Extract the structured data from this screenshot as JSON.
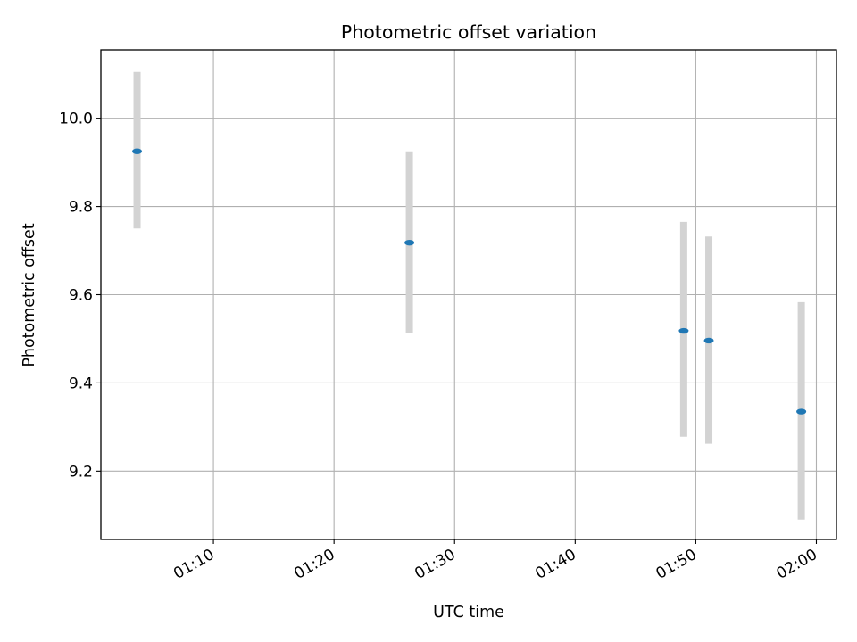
{
  "chart_data": {
    "type": "scatter",
    "title": "Photometric offset variation",
    "xlabel": "UTC time",
    "ylabel": "Photometric offset",
    "x_tick_labels": [
      "01:10",
      "01:20",
      "01:30",
      "01:40",
      "01:50",
      "02:00"
    ],
    "y_ticks": [
      9.2,
      9.4,
      9.6,
      9.8,
      10.0
    ],
    "y_tick_labels": [
      "9.2",
      "9.4",
      "9.6",
      "9.8",
      "10.0"
    ],
    "xlim": [
      "01:00:40",
      "02:01:40"
    ],
    "ylim": [
      9.045,
      10.155
    ],
    "grid": true,
    "error_bar_color": "#d3d3d3",
    "point_color": "#1f77b4",
    "points": [
      {
        "x": "01:03:40",
        "y": 9.925,
        "y_low": 9.75,
        "y_high": 10.105
      },
      {
        "x": "01:26:15",
        "y": 9.718,
        "y_low": 9.513,
        "y_high": 9.925
      },
      {
        "x": "01:49:00",
        "y": 9.518,
        "y_low": 9.278,
        "y_high": 9.765
      },
      {
        "x": "01:51:05",
        "y": 9.496,
        "y_low": 9.262,
        "y_high": 9.732
      },
      {
        "x": "01:58:45",
        "y": 9.335,
        "y_low": 9.09,
        "y_high": 9.583
      }
    ]
  }
}
